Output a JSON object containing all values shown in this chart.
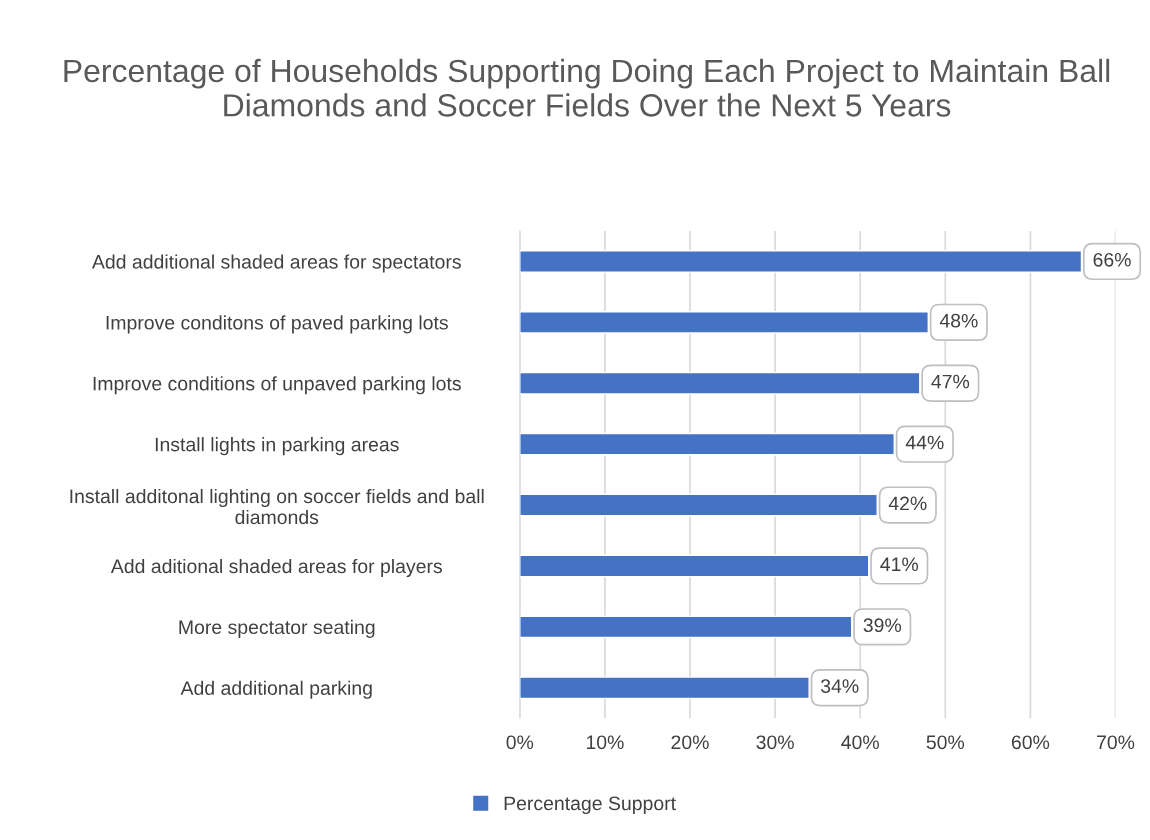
{
  "chart_data": {
    "type": "bar",
    "orientation": "horizontal",
    "title": "Percentage of Households Supporting Doing Each Project to Maintain Ball Diamonds and Soccer Fields Over the Next 5 Years",
    "categories": [
      "Add additional shaded areas for spectators",
      "Improve conditons of paved parking lots",
      "Improve conditions of unpaved parking lots",
      "Install lights in parking areas",
      "Install additonal lighting on soccer fields and ball\ndiamonds",
      "Add aditional shaded areas for players",
      "More spectator seating",
      "Add additional parking"
    ],
    "series": [
      {
        "name": "Percentage Support",
        "color": "#4472c4",
        "values": [
          66,
          48,
          47,
          44,
          42,
          41,
          39,
          34
        ],
        "value_labels": [
          "66%",
          "48%",
          "47%",
          "44%",
          "42%",
          "41%",
          "39%",
          "34%"
        ]
      }
    ],
    "xlim": [
      0,
      70
    ],
    "xticks": [
      {
        "value": 0,
        "label": "0%"
      },
      {
        "value": 10,
        "label": "10%"
      },
      {
        "value": 20,
        "label": "20%"
      },
      {
        "value": 30,
        "label": "30%"
      },
      {
        "value": 40,
        "label": "40%"
      },
      {
        "value": 50,
        "label": "50%"
      },
      {
        "value": 60,
        "label": "60%"
      },
      {
        "value": 70,
        "label": "70%"
      }
    ],
    "grid": "x",
    "legend": "bottom"
  }
}
